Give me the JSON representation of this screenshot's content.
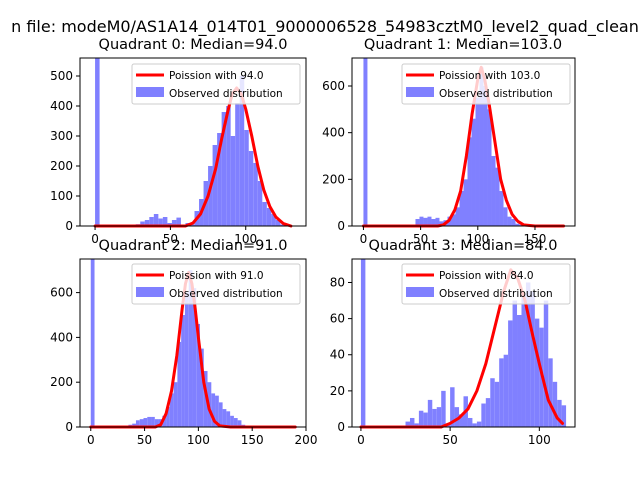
{
  "figure": {
    "suptitle": "n file: modeM0/AS1A14_014T01_9000006528_54983cztM0_level2_quad_clean",
    "colors": {
      "hist": "#8080ff",
      "fit": "#ff0000",
      "frame": "#000000"
    }
  },
  "chart_data": [
    {
      "type": "histogram+line",
      "title": "Quadrant 0: Median=94.0",
      "xlim": [
        -10,
        140
      ],
      "ylim": [
        0,
        560
      ],
      "xticks": [
        0,
        50,
        100
      ],
      "yticks": [
        0,
        100,
        200,
        300,
        400,
        500
      ],
      "legend": {
        "placement": "top-right",
        "line_label": "Poission with 94.0",
        "hist_label": "Observed distribution"
      },
      "bin_width": 3,
      "hist": {
        "bins": [
          0,
          3,
          6,
          9,
          12,
          15,
          18,
          21,
          24,
          27,
          30,
          33,
          36,
          39,
          42,
          45,
          48,
          51,
          54,
          57,
          60,
          63,
          66,
          69,
          72,
          75,
          78,
          81,
          84,
          87,
          90,
          93,
          96,
          99,
          102,
          105,
          108,
          111,
          114,
          117,
          120,
          123,
          126
        ],
        "counts": [
          560,
          0,
          0,
          0,
          0,
          0,
          0,
          0,
          5,
          6,
          15,
          20,
          30,
          40,
          25,
          30,
          10,
          20,
          28,
          5,
          10,
          5,
          50,
          90,
          150,
          200,
          270,
          310,
          380,
          400,
          300,
          410,
          500,
          320,
          250,
          210,
          150,
          80,
          60,
          40,
          20,
          5,
          0
        ]
      },
      "fit": {
        "x": [
          0,
          60,
          65,
          70,
          75,
          80,
          84,
          88,
          91,
          94,
          97,
          100,
          104,
          108,
          112,
          116,
          120,
          125,
          130
        ],
        "y": [
          0,
          0,
          10,
          40,
          100,
          190,
          290,
          380,
          440,
          460,
          440,
          390,
          300,
          200,
          120,
          65,
          30,
          8,
          0
        ]
      }
    },
    {
      "type": "histogram+line",
      "title": "Quadrant 1: Median=103.0",
      "xlim": [
        -10,
        185
      ],
      "ylim": [
        0,
        720
      ],
      "xticks": [
        0,
        50,
        100,
        150
      ],
      "yticks": [
        0,
        200,
        400,
        600
      ],
      "legend": {
        "placement": "top-right",
        "line_label": "Poission with 103.0",
        "hist_label": "Observed distribution"
      },
      "bin_width": 3.5,
      "hist": {
        "bins": [
          0,
          3.5,
          7,
          10.5,
          14,
          17.5,
          21,
          24.5,
          28,
          31.5,
          35,
          38.5,
          42,
          45.5,
          49,
          52.5,
          56,
          59.5,
          63,
          66.5,
          70,
          73.5,
          77,
          80.5,
          84,
          87.5,
          91,
          94.5,
          98,
          101.5,
          105,
          108.5,
          112,
          115.5,
          119,
          122.5,
          126,
          129.5,
          133,
          136.5,
          140
        ],
        "counts": [
          720,
          0,
          0,
          0,
          0,
          0,
          0,
          0,
          0,
          0,
          0,
          0,
          0,
          30,
          40,
          35,
          40,
          30,
          35,
          20,
          25,
          40,
          50,
          80,
          150,
          200,
          380,
          460,
          550,
          680,
          600,
          500,
          300,
          250,
          150,
          80,
          40,
          30,
          10,
          5,
          0
        ]
      },
      "fit": {
        "x": [
          0,
          65,
          70,
          75,
          80,
          85,
          90,
          95,
          100,
          103,
          106,
          110,
          115,
          120,
          125,
          130,
          135,
          140,
          150,
          175
        ],
        "y": [
          0,
          0,
          5,
          25,
          70,
          150,
          300,
          480,
          630,
          680,
          630,
          520,
          360,
          200,
          110,
          50,
          20,
          5,
          0,
          0
        ]
      }
    },
    {
      "type": "histogram+line",
      "title": "Quadrant 2: Median=91.0",
      "xlim": [
        -10,
        200
      ],
      "ylim": [
        0,
        750
      ],
      "xticks": [
        0,
        50,
        100,
        150,
        200
      ],
      "yticks": [
        0,
        200,
        400,
        600
      ],
      "legend": {
        "placement": "top-right",
        "line_label": "Poission with 91.0",
        "hist_label": "Observed distribution"
      },
      "bin_width": 3.5,
      "hist": {
        "bins": [
          0,
          3.5,
          7,
          10.5,
          14,
          17.5,
          21,
          24.5,
          28,
          31.5,
          35,
          38.5,
          42,
          45.5,
          49,
          52.5,
          56,
          59.5,
          63,
          66.5,
          70,
          73.5,
          77,
          80.5,
          84,
          87.5,
          91,
          94.5,
          98,
          101.5,
          105,
          108.5,
          112,
          115.5,
          119,
          122.5,
          126,
          129.5,
          133,
          136.5,
          140,
          143.5
        ],
        "counts": [
          750,
          0,
          0,
          0,
          0,
          0,
          0,
          0,
          0,
          0,
          10,
          15,
          30,
          35,
          40,
          45,
          45,
          35,
          35,
          50,
          90,
          150,
          200,
          380,
          500,
          600,
          700,
          620,
          460,
          350,
          250,
          200,
          150,
          140,
          110,
          80,
          70,
          50,
          40,
          30,
          10,
          5
        ]
      },
      "fit": {
        "x": [
          0,
          60,
          65,
          70,
          75,
          80,
          85,
          88,
          91,
          94,
          97,
          100,
          105,
          110,
          115,
          120,
          130,
          190
        ],
        "y": [
          0,
          0,
          10,
          60,
          160,
          320,
          530,
          640,
          690,
          640,
          530,
          400,
          200,
          80,
          25,
          5,
          0,
          0
        ]
      }
    },
    {
      "type": "histogram+line",
      "title": "Quadrant 3: Median=84.0",
      "xlim": [
        -5,
        120
      ],
      "ylim": [
        0,
        93
      ],
      "xticks": [
        0,
        50,
        100
      ],
      "yticks": [
        0,
        20,
        40,
        60,
        80
      ],
      "legend": {
        "placement": "top-right",
        "line_label": "Poission with 84.0",
        "hist_label": "Observed distribution"
      },
      "bin_width": 2.5,
      "hist": {
        "bins": [
          0,
          2.5,
          5,
          7.5,
          10,
          12.5,
          15,
          17.5,
          20,
          22.5,
          25,
          27.5,
          30,
          32.5,
          35,
          37.5,
          40,
          42.5,
          45,
          47.5,
          50,
          52.5,
          55,
          57.5,
          60,
          62.5,
          65,
          67.5,
          70,
          72.5,
          75,
          77.5,
          80,
          82.5,
          85,
          87.5,
          90,
          92.5,
          95,
          97.5,
          100,
          102.5,
          105,
          107.5,
          110,
          112.5
        ],
        "counts": [
          93,
          0,
          0,
          0,
          0,
          0,
          0,
          0,
          0,
          0,
          3,
          5,
          2,
          9,
          8,
          15,
          10,
          11,
          20,
          2,
          22,
          11,
          7,
          17,
          5,
          2,
          3,
          13,
          16,
          27,
          25,
          38,
          40,
          59,
          70,
          62,
          73,
          80,
          75,
          60,
          55,
          70,
          38,
          25,
          15,
          12
        ]
      },
      "fit": {
        "x": [
          0,
          45,
          50,
          55,
          60,
          65,
          70,
          75,
          80,
          84,
          88,
          92,
          96,
          100,
          105,
          110,
          113
        ],
        "y": [
          0,
          0,
          2,
          5,
          10,
          20,
          35,
          55,
          75,
          87,
          82,
          70,
          52,
          35,
          15,
          5,
          2
        ]
      }
    }
  ]
}
